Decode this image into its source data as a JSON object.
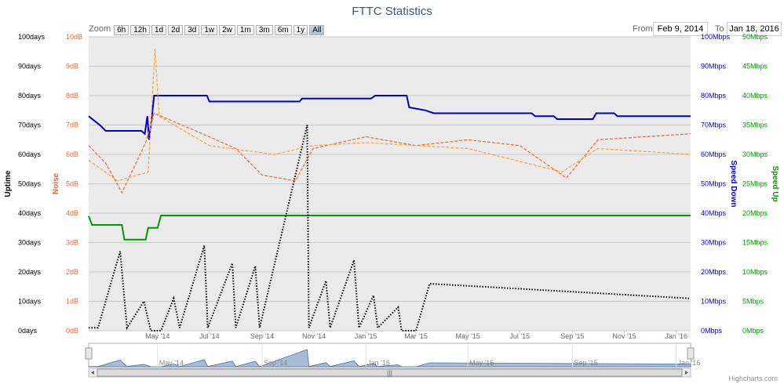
{
  "title": "FTTC Statistics",
  "range_selector": {
    "zoom_label": "Zoom",
    "buttons": [
      "6h",
      "12h",
      "1d",
      "2d",
      "3d",
      "1w",
      "2w",
      "1m",
      "3m",
      "6m",
      "1y",
      "All"
    ],
    "active": "All",
    "from_label": "From",
    "from_value": "Feb 9, 2014",
    "to_label": "To",
    "to_value": "Jan 18, 2016"
  },
  "credits": "Highcharts.com",
  "chart_data": {
    "type": "line",
    "title": "FTTC Statistics",
    "x_range": [
      "2014-02-09",
      "2016-01-18"
    ],
    "x_ticks": [
      "May '14",
      "Jul '14",
      "Sep '14",
      "Nov '14",
      "Jan '15",
      "Mar '15",
      "May '15",
      "Jul '15",
      "Sep '15",
      "Nov '15",
      "Jan '16"
    ],
    "navigator_ticks": [
      "May '14",
      "Sep '14",
      "Jan '16",
      "May '15",
      "Sep '15",
      "Jan '16"
    ],
    "axes": {
      "uptime": {
        "label": "Uptime",
        "min": 0,
        "max": 100,
        "unit": "days",
        "color": "#000000",
        "ticks": [
          "0days",
          "10days",
          "20days",
          "30days",
          "40days",
          "50days",
          "60days",
          "70days",
          "80days",
          "90days",
          "100days"
        ]
      },
      "noise": {
        "label": "Noise",
        "min": 0,
        "max": 10,
        "unit": "dB",
        "color": "#ee6633",
        "ticks": [
          "0dB",
          "1dB",
          "2dB",
          "3dB",
          "4dB",
          "5dB",
          "6dB",
          "7dB",
          "8dB",
          "9dB",
          "10dB"
        ]
      },
      "speed_down": {
        "label": "Speed Down",
        "min": 0,
        "max": 100,
        "unit": "Mbps",
        "color": "#0000cc",
        "ticks": [
          "0Mbps",
          "10Mbps",
          "20Mbps",
          "30Mbps",
          "40Mbps",
          "50Mbps",
          "60Mbps",
          "70Mbps",
          "80Mbps",
          "90Mbps",
          "100Mbps"
        ]
      },
      "speed_up": {
        "label": "Speed Up",
        "min": 0,
        "max": 50,
        "unit": "Mbps",
        "color": "#009900",
        "ticks": [
          "0Mbps",
          "5Mbps",
          "10Mbps",
          "15Mbps",
          "20Mbps",
          "25Mbps",
          "30Mbps",
          "35Mbps",
          "40Mbps",
          "45Mbps",
          "50Mbps"
        ]
      }
    },
    "grid": true,
    "series": [
      {
        "axis": "speed_down",
        "color": "#0000cc",
        "style": "solid",
        "points": [
          [
            "2014-02-09",
            73
          ],
          [
            "2014-02-22",
            70
          ],
          [
            "2014-03-01",
            68
          ],
          [
            "2014-04-12",
            68
          ],
          [
            "2014-04-16",
            67
          ],
          [
            "2014-04-19",
            73
          ],
          [
            "2014-04-21",
            65
          ],
          [
            "2014-04-24",
            72
          ],
          [
            "2014-04-27",
            80
          ],
          [
            "2014-06-28",
            80
          ],
          [
            "2014-07-01",
            78
          ],
          [
            "2014-10-15",
            78
          ],
          [
            "2014-10-18",
            79
          ],
          [
            "2015-01-07",
            79
          ],
          [
            "2015-01-12",
            80
          ],
          [
            "2015-02-18",
            80
          ],
          [
            "2015-02-21",
            76
          ],
          [
            "2015-03-12",
            75
          ],
          [
            "2015-03-22",
            74
          ],
          [
            "2015-07-15",
            74
          ],
          [
            "2015-07-19",
            73
          ],
          [
            "2015-08-10",
            73
          ],
          [
            "2015-08-14",
            72
          ],
          [
            "2015-09-25",
            72
          ],
          [
            "2015-09-29",
            74
          ],
          [
            "2015-10-20",
            74
          ],
          [
            "2015-10-24",
            73
          ],
          [
            "2016-01-18",
            73
          ]
        ]
      },
      {
        "axis": "speed_up",
        "color": "#009900",
        "style": "solid",
        "points": [
          [
            "2014-02-09",
            19.5
          ],
          [
            "2014-02-13",
            18
          ],
          [
            "2014-03-20",
            18
          ],
          [
            "2014-03-23",
            15.5
          ],
          [
            "2014-04-17",
            15.5
          ],
          [
            "2014-04-20",
            17.5
          ],
          [
            "2014-05-01",
            17.5
          ],
          [
            "2014-05-05",
            19.6
          ],
          [
            "2016-01-18",
            19.6
          ]
        ]
      },
      {
        "axis": "uptime",
        "color": "#000000",
        "style": "dotted",
        "points": [
          [
            "2014-02-09",
            1
          ],
          [
            "2014-02-20",
            1
          ],
          [
            "2014-03-18",
            27
          ],
          [
            "2014-03-26",
            1
          ],
          [
            "2014-04-15",
            10
          ],
          [
            "2014-04-23",
            0
          ],
          [
            "2014-05-05",
            0
          ],
          [
            "2014-05-20",
            11
          ],
          [
            "2014-05-27",
            1
          ],
          [
            "2014-06-25",
            29
          ],
          [
            "2014-06-29",
            1
          ],
          [
            "2014-07-28",
            23
          ],
          [
            "2014-08-01",
            1
          ],
          [
            "2014-08-24",
            22
          ],
          [
            "2014-08-29",
            1
          ],
          [
            "2014-10-24",
            70
          ],
          [
            "2014-10-26",
            1
          ],
          [
            "2014-11-15",
            17
          ],
          [
            "2014-11-20",
            1
          ],
          [
            "2014-12-18",
            24
          ],
          [
            "2014-12-24",
            1
          ],
          [
            "2015-01-10",
            12
          ],
          [
            "2015-01-15",
            1
          ],
          [
            "2015-02-08",
            8
          ],
          [
            "2015-02-12",
            0
          ],
          [
            "2015-03-01",
            0
          ],
          [
            "2015-03-17",
            16
          ],
          [
            "2016-01-18",
            11
          ]
        ]
      },
      {
        "axis": "noise",
        "color": "#ee6633",
        "style": "dashed",
        "points": [
          [
            "2014-02-09",
            6.3
          ],
          [
            "2014-03-01",
            5.7
          ],
          [
            "2014-03-20",
            4.7
          ],
          [
            "2014-04-17",
            6.4
          ],
          [
            "2014-04-27",
            7.4
          ],
          [
            "2014-06-15",
            6.8
          ],
          [
            "2014-08-01",
            6.2
          ],
          [
            "2014-09-01",
            5.3
          ],
          [
            "2014-10-10",
            5.1
          ],
          [
            "2014-10-31",
            6.2
          ],
          [
            "2015-01-01",
            6.6
          ],
          [
            "2015-03-01",
            6.3
          ],
          [
            "2015-05-01",
            6.5
          ],
          [
            "2015-07-01",
            6.3
          ],
          [
            "2015-08-25",
            5.2
          ],
          [
            "2015-10-01",
            6.5
          ],
          [
            "2016-01-18",
            6.7
          ]
        ]
      },
      {
        "axis": "noise",
        "color": "#f5a640",
        "style": "dashed",
        "points": [
          [
            "2014-02-09",
            5.8
          ],
          [
            "2014-03-15",
            5.1
          ],
          [
            "2014-04-20",
            5.4
          ],
          [
            "2014-04-28",
            9.6
          ],
          [
            "2014-05-03",
            7.3
          ],
          [
            "2014-07-01",
            6.3
          ],
          [
            "2014-09-15",
            6.0
          ],
          [
            "2014-10-31",
            6.3
          ],
          [
            "2015-01-01",
            6.4
          ],
          [
            "2015-05-01",
            6.2
          ],
          [
            "2015-08-20",
            5.4
          ],
          [
            "2015-10-01",
            6.2
          ],
          [
            "2016-01-18",
            6.0
          ]
        ]
      }
    ]
  }
}
